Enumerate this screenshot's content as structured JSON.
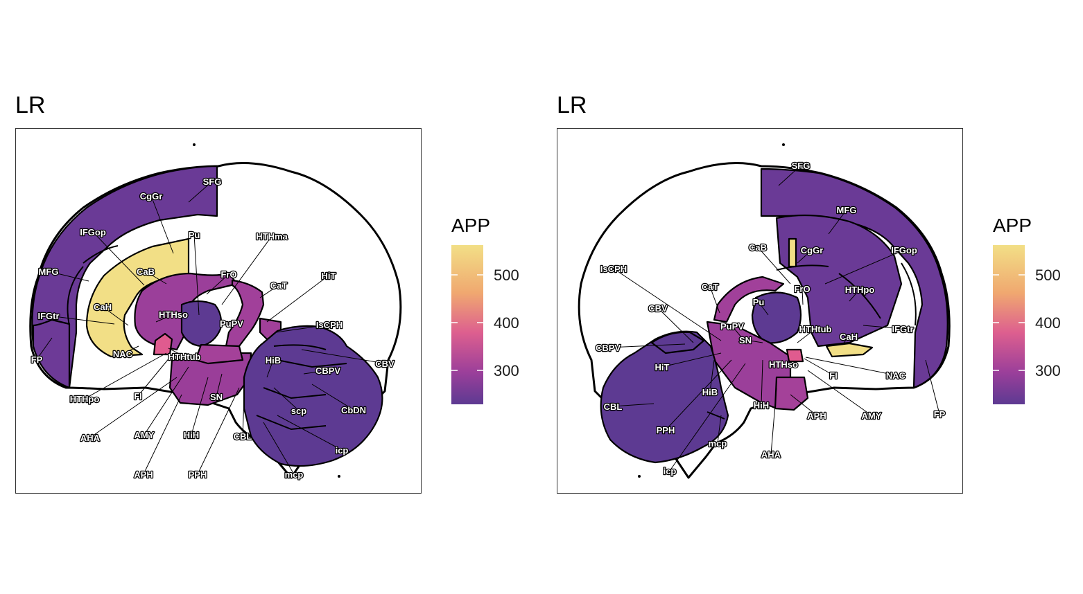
{
  "colors": {
    "high": "#f2df86",
    "upper": "#f0a870",
    "mid": "#dd5f8f",
    "low_mid": "#a53f9a",
    "purple": "#7a3d99",
    "deep": "#6a3a96",
    "darkest": "#5d3a92"
  },
  "legend": {
    "title": "APP",
    "ticks": [
      "500",
      "400",
      "300"
    ],
    "tick_values": [
      500,
      400,
      300
    ],
    "range": [
      240,
      570
    ]
  },
  "panels": [
    {
      "title": "LR",
      "labels": [
        "SFG",
        "CgGr",
        "IFGop",
        "Pu",
        "HTHma",
        "MFG",
        "CaB",
        "FrO",
        "HiT",
        "CaT",
        "CaH",
        "HTHso",
        "IFGtr",
        "PuPV",
        "IsCPH",
        "NAC",
        "HTHtub",
        "CBV",
        "FP",
        "HiB",
        "CBPV",
        "HTHpo",
        "FI",
        "SN",
        "scp",
        "CbDN",
        "AHA",
        "AMY",
        "HiH",
        "CBL",
        "icp",
        "APH",
        "PPH",
        "mcp"
      ],
      "regions": [
        {
          "name": "SFG",
          "value": 283
        },
        {
          "name": "MFG",
          "value": 283
        },
        {
          "name": "IFGop",
          "value": 285
        },
        {
          "name": "IFGtr",
          "value": 285
        },
        {
          "name": "FP",
          "value": 280
        },
        {
          "name": "CgGr",
          "value": 285
        },
        {
          "name": "CaB",
          "value": 550
        },
        {
          "name": "CaH",
          "value": 550
        },
        {
          "name": "NAC",
          "value": 550
        },
        {
          "name": "HTHtub",
          "value": 400
        },
        {
          "name": "HTHso",
          "value": 320
        },
        {
          "name": "CaT",
          "value": 330
        },
        {
          "name": "PuPV",
          "value": 290
        },
        {
          "name": "Pu",
          "value": 290
        },
        {
          "name": "cerebellum",
          "value": 270
        }
      ]
    },
    {
      "title": "LR",
      "labels": [
        "SFG",
        "MFG",
        "CaB",
        "CgGr",
        "IFGop",
        "IsCPH",
        "CaT",
        "FrO",
        "HTHpo",
        "Pu",
        "CBV",
        "PuPV",
        "HTHtub",
        "CaH",
        "IFGtr",
        "SN",
        "CBPV",
        "HiT",
        "HTHso",
        "FI",
        "NAC",
        "HiB",
        "HiH",
        "APH",
        "AMY",
        "FP",
        "CBL",
        "PPH",
        "mcp",
        "AHA",
        "icp"
      ],
      "regions": [
        {
          "name": "SFG",
          "value": 283
        },
        {
          "name": "MFG",
          "value": 283
        },
        {
          "name": "CgGr",
          "value": 285
        },
        {
          "name": "CaB",
          "value": 550
        },
        {
          "name": "NAC",
          "value": 550
        },
        {
          "name": "cerebellum",
          "value": 270
        }
      ]
    }
  ]
}
